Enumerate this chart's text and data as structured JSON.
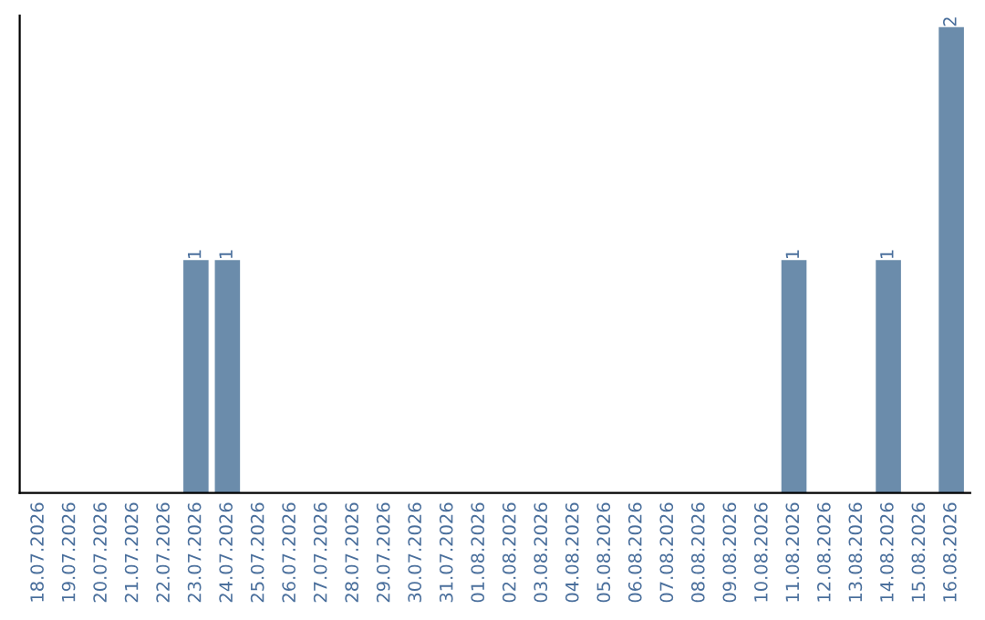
{
  "chart_data": {
    "type": "bar",
    "categories": [
      "18.07.2026",
      "19.07.2026",
      "20.07.2026",
      "21.07.2026",
      "22.07.2026",
      "23.07.2026",
      "24.07.2026",
      "25.07.2026",
      "26.07.2026",
      "27.07.2026",
      "28.07.2026",
      "29.07.2026",
      "30.07.2026",
      "31.07.2026",
      "01.08.2026",
      "02.08.2026",
      "03.08.2026",
      "04.08.2026",
      "05.08.2026",
      "06.08.2026",
      "07.08.2026",
      "08.08.2026",
      "09.08.2026",
      "10.08.2026",
      "11.08.2026",
      "12.08.2026",
      "13.08.2026",
      "14.08.2026",
      "15.08.2026",
      "16.08.2026"
    ],
    "values": [
      0,
      0,
      0,
      0,
      0,
      1,
      1,
      0,
      0,
      0,
      0,
      0,
      0,
      0,
      0,
      0,
      0,
      0,
      0,
      0,
      0,
      0,
      0,
      0,
      1,
      0,
      0,
      1,
      0,
      2
    ],
    "value_labels": [
      null,
      null,
      null,
      null,
      null,
      "1",
      "1",
      null,
      null,
      null,
      null,
      null,
      null,
      null,
      null,
      null,
      null,
      null,
      null,
      null,
      null,
      null,
      null,
      null,
      "1",
      null,
      null,
      "1",
      null,
      "2"
    ],
    "color": "#6b8cab",
    "ylim": [
      0,
      2.05
    ],
    "tick_labels": "x",
    "grid": false
  }
}
